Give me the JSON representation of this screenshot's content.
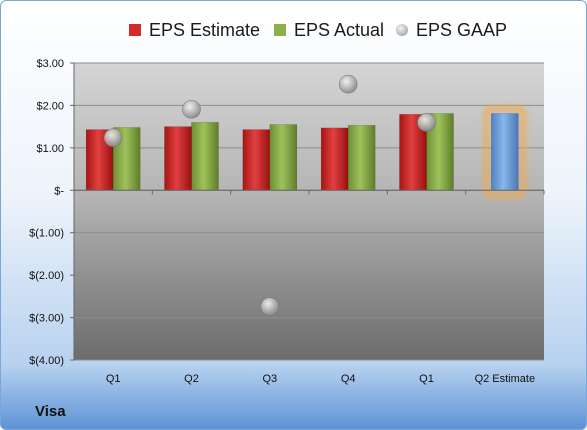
{
  "company": "Visa",
  "colors": {
    "estimate": "#d42a2a",
    "actual": "#8cb04a",
    "gaap": "#b8b8b8",
    "forecast": "#6fa0dc",
    "forecast_glow": "#f4a94a"
  },
  "chart_data": {
    "type": "bar",
    "categories": [
      "Q1",
      "Q2",
      "Q3",
      "Q4",
      "Q1",
      "Q2 Estimate"
    ],
    "series": [
      {
        "name": "EPS Estimate",
        "values": [
          1.43,
          1.5,
          1.43,
          1.47,
          1.79,
          null
        ]
      },
      {
        "name": "EPS Actual",
        "values": [
          1.48,
          1.6,
          1.55,
          1.53,
          1.81,
          null
        ]
      },
      {
        "name": "EPS GAAP",
        "values": [
          1.24,
          1.91,
          -2.74,
          2.5,
          1.6,
          null
        ]
      }
    ],
    "forecast": {
      "category": "Q2 Estimate",
      "value": 1.81
    },
    "ylim": [
      -4,
      3
    ],
    "yticks": [
      3,
      2,
      1,
      0,
      -1,
      -2,
      -3,
      -4
    ],
    "ytick_labels": [
      "$3.00",
      "$2.00",
      "$1.00",
      "$-",
      "$(1.00)",
      "$(2.00)",
      "$(3.00)",
      "$(4.00)"
    ],
    "legend_position": "top"
  }
}
